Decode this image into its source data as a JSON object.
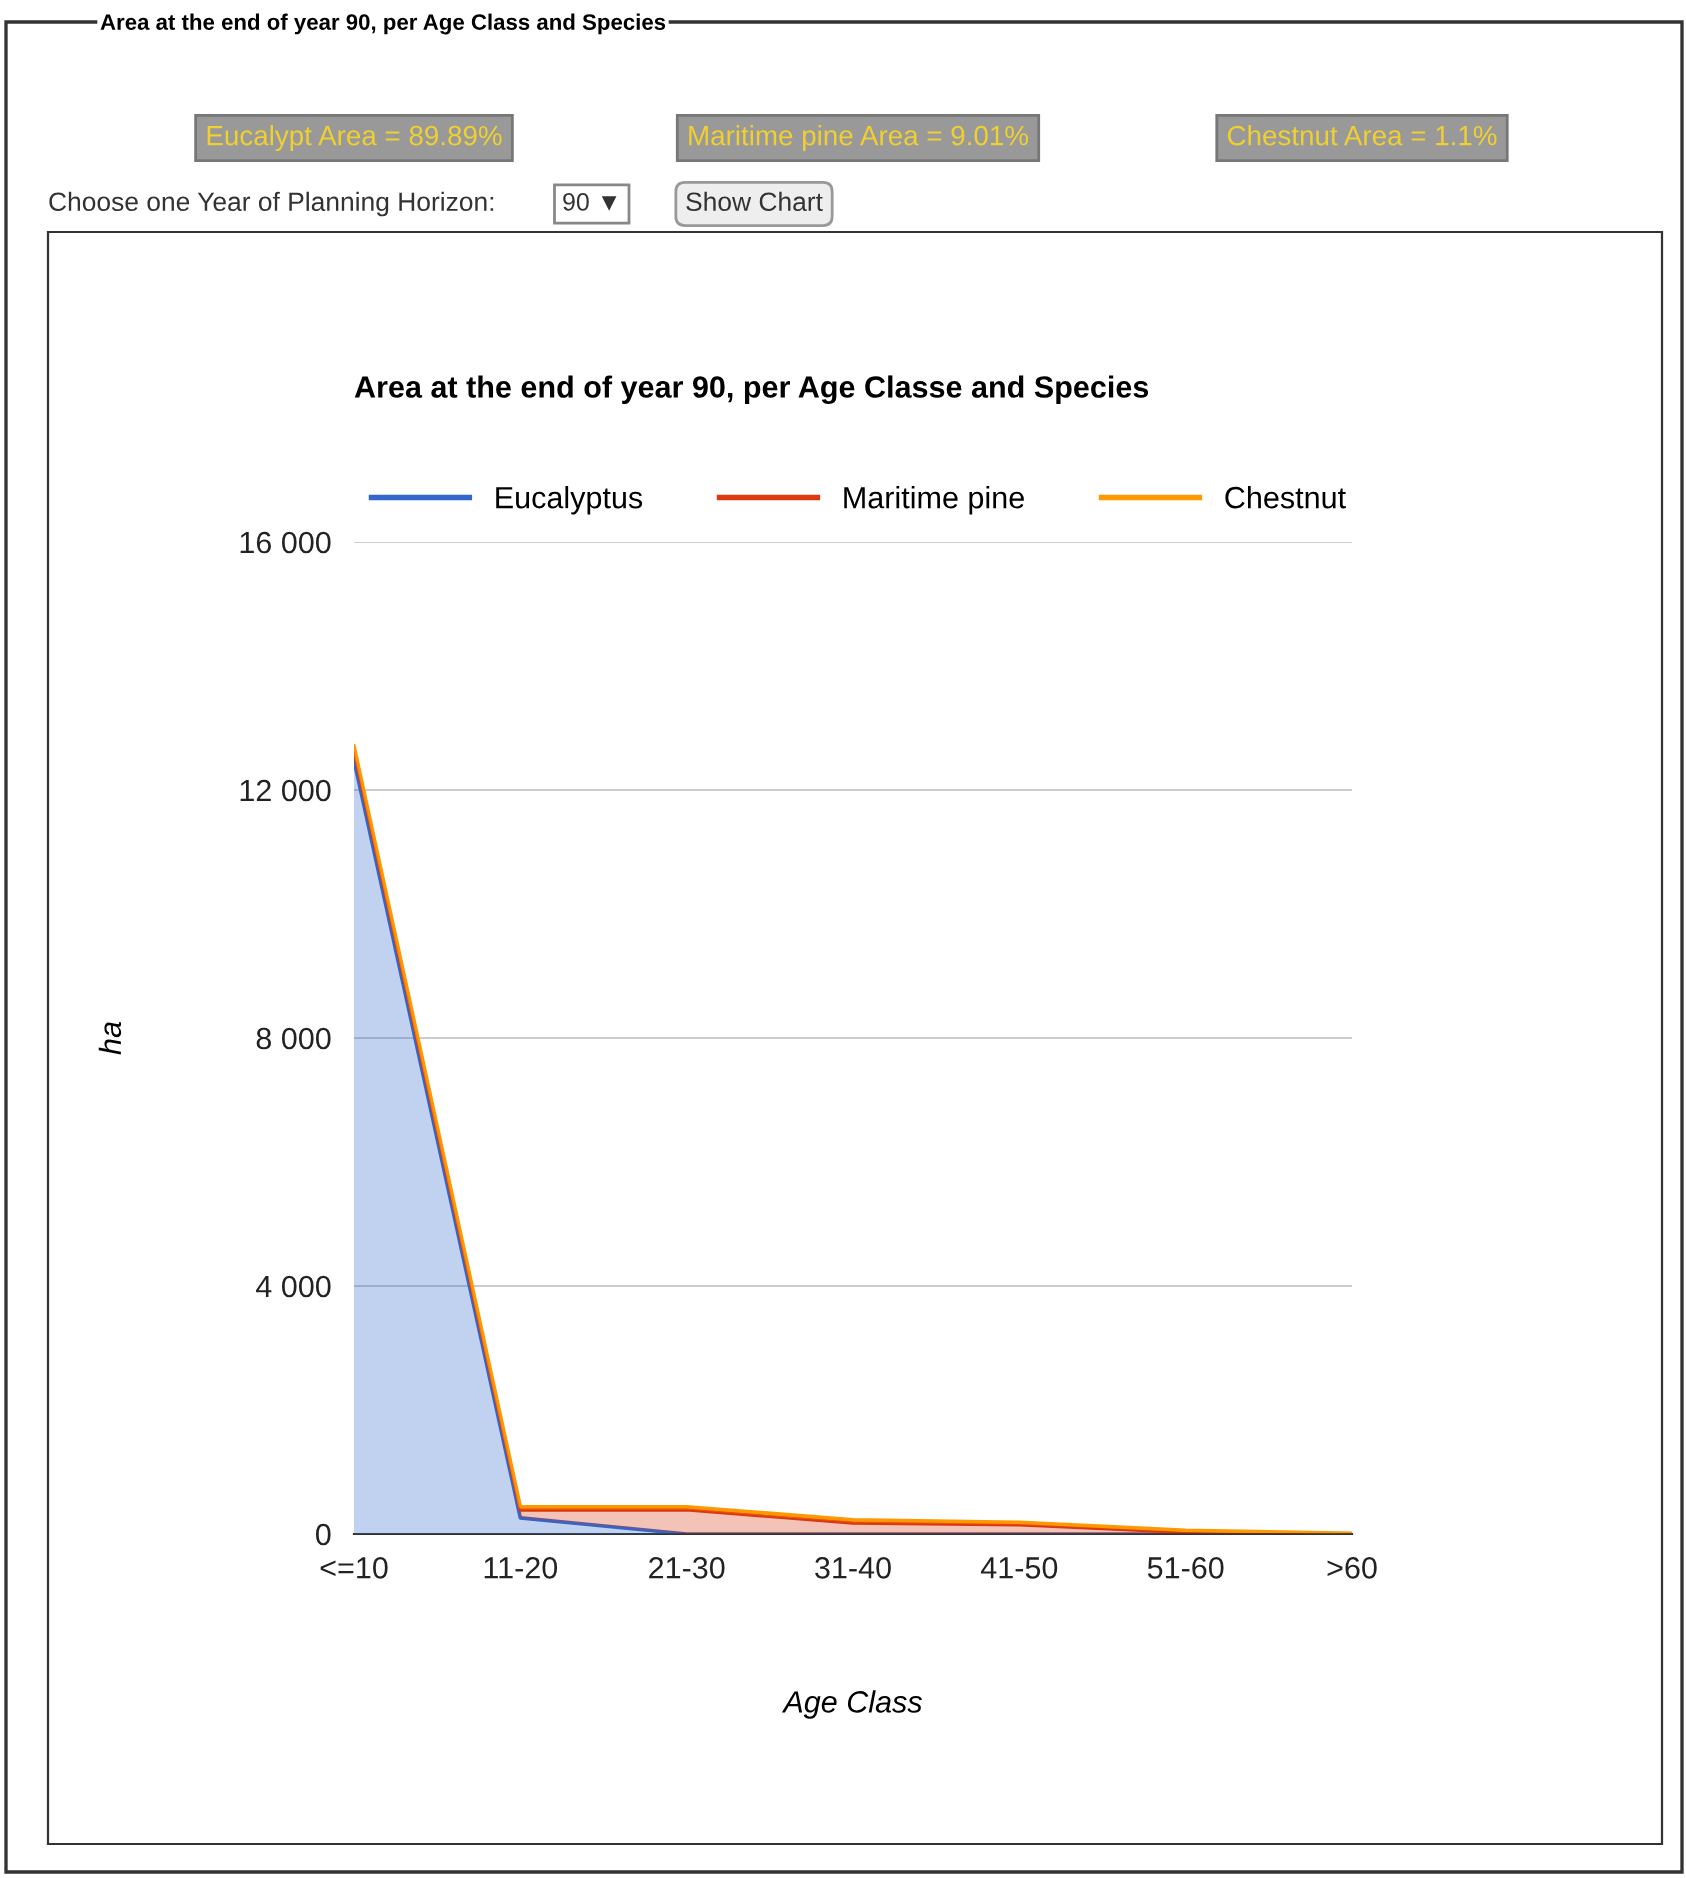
{
  "chart_data": {
    "type": "area",
    "stacked": true,
    "title": "Area at the end of year 90, per Age Classe and Species",
    "xlabel": "Age Class",
    "ylabel": "ha",
    "categories": [
      "<=10",
      "11-20",
      "21-30",
      "31-40",
      "41-50",
      "51-60",
      ">60"
    ],
    "series": [
      {
        "name": "Eucalyptus",
        "color": "#3366cc",
        "values": [
          12480,
          260,
          0,
          0,
          0,
          0,
          0
        ]
      },
      {
        "name": "Maritime pine",
        "color": "#dc3912",
        "values": [
          180,
          130,
          390,
          180,
          150,
          30,
          0
        ]
      },
      {
        "name": "Chestnut",
        "color": "#ff9900",
        "values": [
          50,
          50,
          50,
          50,
          40,
          30,
          10
        ]
      }
    ],
    "ylim": [
      0,
      16000
    ],
    "yticks": [
      {
        "value": 0,
        "label": "0"
      },
      {
        "value": 4000,
        "label": "4 000"
      },
      {
        "value": 8000,
        "label": "8 000"
      },
      {
        "value": 12000,
        "label": "12 000"
      },
      {
        "value": 16000,
        "label": "16 000"
      }
    ],
    "grid": "y",
    "legend": "top",
    "annotations": [
      "Area at the end of year 90, per Age Class and Species",
      "Eucalypt Area = 89.89%",
      "Maritime pine Area = 9.01%",
      "Chestnut Area = 1.1%",
      "Choose one Year of Planning Horizon:",
      "90 ▼",
      "Show Chart"
    ]
  }
}
